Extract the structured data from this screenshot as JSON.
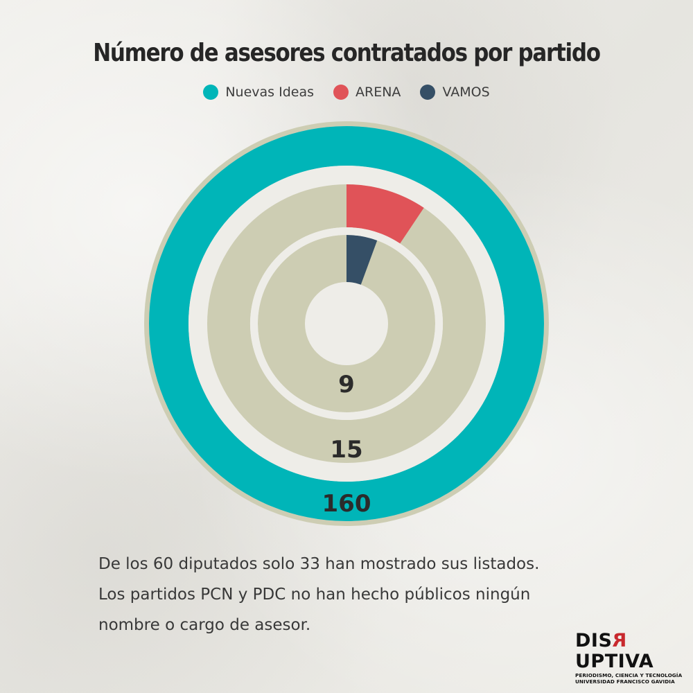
{
  "chart_data": {
    "type": "radial-bar",
    "title": "Número de asesores contratados por partido",
    "legend_position": "top",
    "scale_max": 160,
    "series": [
      {
        "name": "Nuevas Ideas",
        "value": 160,
        "value_label": "160",
        "color": "#00b5b8"
      },
      {
        "name": "ARENA",
        "value": 15,
        "value_label": "15",
        "color": "#e05358"
      },
      {
        "name": "VAMOS",
        "value": 9,
        "value_label": "9",
        "color": "#354f66"
      }
    ],
    "track_color": "#cdcdb3"
  },
  "note": {
    "lines": [
      "De los 60 diputados solo 33 han mostrado sus listados.",
      "Los partidos PCN y PDC no han hecho públicos ningún",
      "nombre o cargo de asesor."
    ]
  },
  "brand": {
    "name_before": "DIS",
    "name_accent": "R",
    "name_after": "UPTIVA",
    "tagline_1": "PERIODISMO, CIENCIA Y TECNOLOGÍA",
    "tagline_2": "UNIVERSIDAD FRANCISCO GAVIDIA"
  }
}
